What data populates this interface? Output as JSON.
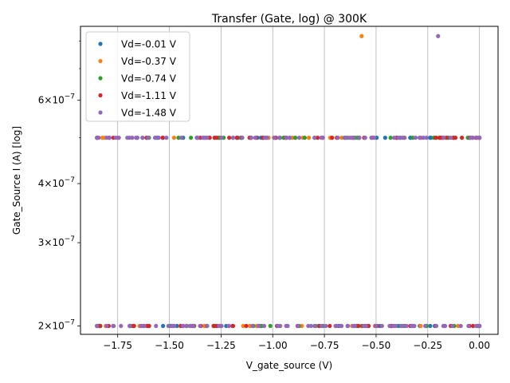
{
  "chart_data": {
    "type": "scatter",
    "title": "Transfer (Gate, log) @ 300K",
    "xlabel": "V_gate_source (V)",
    "ylabel": "Gate_Source I (A) [log]",
    "xlim": [
      -1.93,
      0.09
    ],
    "ylim": [
      1.92e-07,
      8.6e-07
    ],
    "yscale": "log",
    "grid": "x-major-only",
    "legend_position": "top-left",
    "x_ticks": [
      {
        "value": -1.75,
        "label": "−1.75"
      },
      {
        "value": -1.5,
        "label": "−1.50"
      },
      {
        "value": -1.25,
        "label": "−1.25"
      },
      {
        "value": -1.0,
        "label": "−1.00"
      },
      {
        "value": -0.75,
        "label": "−0.75"
      },
      {
        "value": -0.5,
        "label": "−0.50"
      },
      {
        "value": -0.25,
        "label": "−0.25"
      },
      {
        "value": 0.0,
        "label": "0.00"
      }
    ],
    "y_ticks": [
      {
        "value": 2e-07,
        "mantissa": "2",
        "exponent": "−7"
      },
      {
        "value": 3e-07,
        "mantissa": "3",
        "exponent": "−7"
      },
      {
        "value": 4e-07,
        "mantissa": "4",
        "exponent": "−7"
      },
      {
        "value": 6e-07,
        "mantissa": "6",
        "exponent": "−7"
      }
    ],
    "y_minor_ticks": [
      5e-07,
      7e-07,
      8e-07
    ],
    "x_range": [
      -1.85,
      0.0
    ],
    "levels": [
      2e-07,
      5e-07
    ],
    "series": [
      {
        "name": "Vd=-0.01 V",
        "color": "#1f77b4",
        "extra_points": [
          {
            "x": -1.06,
            "y": 2e-07
          },
          {
            "x": -1.07,
            "y": 2e-07
          }
        ]
      },
      {
        "name": "Vd=-0.37 V",
        "color": "#ff7f0e",
        "extra_points": [
          {
            "x": -0.57,
            "y": 8.2e-07
          },
          {
            "x": -0.4,
            "y": 5e-07
          }
        ]
      },
      {
        "name": "Vd=-0.74 V",
        "color": "#2ca02c",
        "extra_points": [
          {
            "x": -1.84,
            "y": 2e-07
          },
          {
            "x": -0.43,
            "y": 5e-07
          },
          {
            "x": -0.22,
            "y": 5e-07
          }
        ]
      },
      {
        "name": "Vd=-1.11 V",
        "color": "#d62728",
        "extra_points": [
          {
            "x": -0.18,
            "y": 5e-07
          },
          {
            "x": -0.16,
            "y": 5e-07
          }
        ]
      },
      {
        "name": "Vd=-1.48 V",
        "color": "#9467bd",
        "extra_points": [
          {
            "x": -0.2,
            "y": 8.2e-07
          }
        ]
      }
    ]
  }
}
